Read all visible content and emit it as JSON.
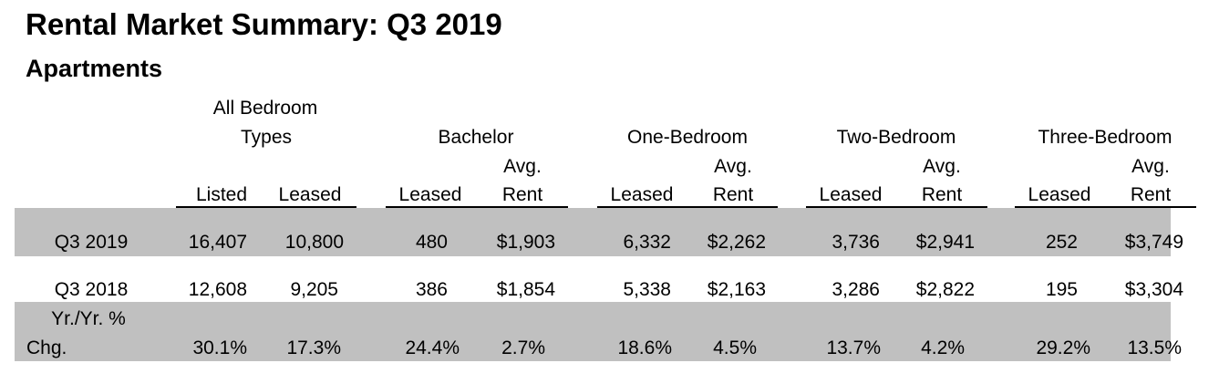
{
  "title": "Rental Market Summary: Q3 2019",
  "subtitle": "Apartments",
  "colors": {
    "band": "#c0c0c0",
    "text": "#000000"
  },
  "groups": {
    "all_line1": "All Bedroom",
    "all_line2": "Types",
    "bachelor": "Bachelor",
    "one": "One-Bedroom",
    "two": "Two-Bedroom",
    "three": "Three-Bedroom"
  },
  "subheaders": {
    "listed": "Listed",
    "leased": "Leased",
    "avg": "Avg.",
    "rent": "Rent"
  },
  "rows": [
    {
      "label": "Q3 2019",
      "values": [
        "16,407",
        "10,800",
        "480",
        "$1,903",
        "6,332",
        "$2,262",
        "3,736",
        "$2,941",
        "252",
        "$3,749"
      ]
    },
    {
      "label": "Q3 2018",
      "values": [
        "12,608",
        "9,205",
        "386",
        "$1,854",
        "5,338",
        "$2,163",
        "3,286",
        "$2,822",
        "195",
        "$3,304"
      ]
    },
    {
      "label_line1": "Yr./Yr. %",
      "label_line2": "Chg.",
      "values": [
        "30.1%",
        "17.3%",
        "24.4%",
        "2.7%",
        "18.6%",
        "4.5%",
        "13.7%",
        "4.2%",
        "29.2%",
        "13.5%"
      ]
    }
  ]
}
